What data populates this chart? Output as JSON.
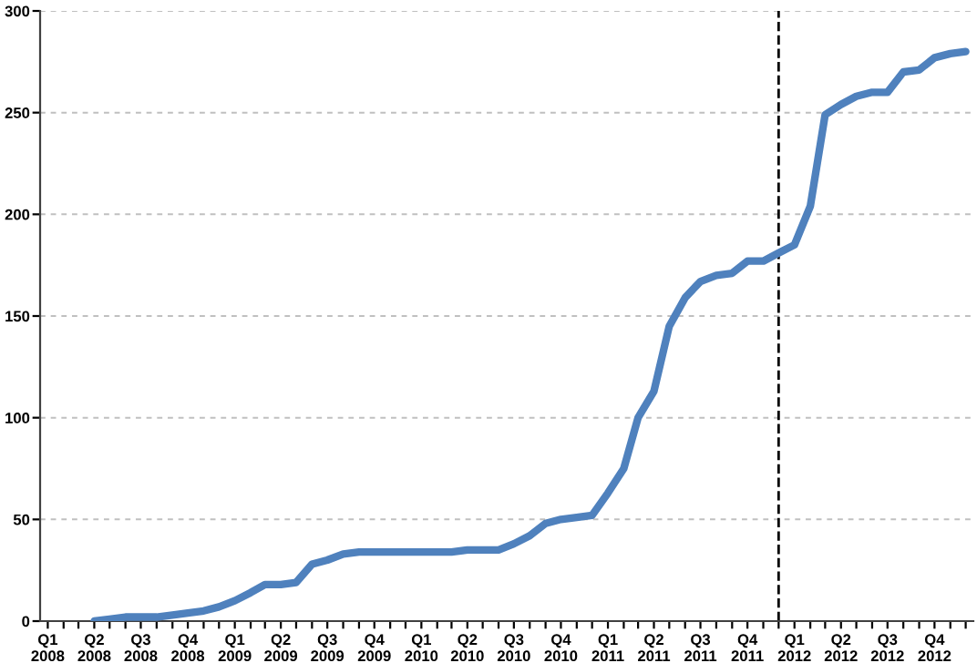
{
  "chart_data": {
    "type": "line",
    "x": [
      "2008-04",
      "2008-05",
      "2008-06",
      "2008-07",
      "2008-08",
      "2008-09",
      "2008-10",
      "2008-11",
      "2008-12",
      "2009-01",
      "2009-02",
      "2009-03",
      "2009-04",
      "2009-05",
      "2009-06",
      "2009-07",
      "2009-08",
      "2009-09",
      "2009-10",
      "2009-11",
      "2009-12",
      "2010-01",
      "2010-02",
      "2010-03",
      "2010-04",
      "2010-05",
      "2010-06",
      "2010-07",
      "2010-08",
      "2010-09",
      "2010-10",
      "2010-11",
      "2010-12",
      "2011-01",
      "2011-02",
      "2011-03",
      "2011-04",
      "2011-05",
      "2011-06",
      "2011-07",
      "2011-08",
      "2011-09",
      "2011-10",
      "2011-11",
      "2011-12",
      "2012-01",
      "2012-02",
      "2012-03",
      "2012-04",
      "2012-05",
      "2012-06",
      "2012-07",
      "2012-08",
      "2012-09",
      "2012-10",
      "2012-11",
      "2012-12"
    ],
    "series": [
      {
        "color": "#4f81bd",
        "values": [
          0,
          1,
          2,
          2,
          2,
          3,
          4,
          5,
          7,
          10,
          14,
          18,
          18,
          19,
          28,
          30,
          33,
          34,
          34,
          34,
          34,
          34,
          34,
          34,
          35,
          35,
          35,
          38,
          42,
          48,
          50,
          51,
          52,
          63,
          75,
          100,
          113,
          145,
          159,
          167,
          170,
          171,
          177,
          177,
          181,
          185,
          204,
          249,
          254,
          258,
          260,
          260,
          270,
          271,
          277,
          279,
          280
        ]
      }
    ],
    "xlim": [
      "2007-12-17",
      "2012-12-16"
    ],
    "xticks": [
      {
        "value": "2008-01",
        "label": "Q1\n2008"
      },
      {
        "value": "2008-02",
        "label": null
      },
      {
        "value": "2008-03",
        "label": null
      },
      {
        "value": "2008-04",
        "label": "Q2\n2008"
      },
      {
        "value": "2008-05",
        "label": null
      },
      {
        "value": "2008-06",
        "label": null
      },
      {
        "value": "2008-07",
        "label": "Q3\n2008"
      },
      {
        "value": "2008-08",
        "label": null
      },
      {
        "value": "2008-09",
        "label": null
      },
      {
        "value": "2008-10",
        "label": "Q4\n2008"
      },
      {
        "value": "2008-11",
        "label": null
      },
      {
        "value": "2008-12",
        "label": null
      },
      {
        "value": "2009-01",
        "label": "Q1\n2009"
      },
      {
        "value": "2009-02",
        "label": null
      },
      {
        "value": "2009-03",
        "label": null
      },
      {
        "value": "2009-04",
        "label": "Q2\n2009"
      },
      {
        "value": "2009-05",
        "label": null
      },
      {
        "value": "2009-06",
        "label": null
      },
      {
        "value": "2009-07",
        "label": "Q3\n2009"
      },
      {
        "value": "2009-08",
        "label": null
      },
      {
        "value": "2009-09",
        "label": null
      },
      {
        "value": "2009-10",
        "label": "Q4\n2009"
      },
      {
        "value": "2009-11",
        "label": null
      },
      {
        "value": "2009-12",
        "label": null
      },
      {
        "value": "2010-01",
        "label": "Q1\n2010"
      },
      {
        "value": "2010-02",
        "label": null
      },
      {
        "value": "2010-03",
        "label": null
      },
      {
        "value": "2010-04",
        "label": "Q2\n2010"
      },
      {
        "value": "2010-05",
        "label": null
      },
      {
        "value": "2010-06",
        "label": null
      },
      {
        "value": "2010-07",
        "label": "Q3\n2010"
      },
      {
        "value": "2010-08",
        "label": null
      },
      {
        "value": "2010-09",
        "label": null
      },
      {
        "value": "2010-10",
        "label": "Q4\n2010"
      },
      {
        "value": "2010-11",
        "label": null
      },
      {
        "value": "2010-12",
        "label": null
      },
      {
        "value": "2011-01",
        "label": "Q1\n2011"
      },
      {
        "value": "2011-02",
        "label": null
      },
      {
        "value": "2011-03",
        "label": null
      },
      {
        "value": "2011-04",
        "label": "Q2\n2011"
      },
      {
        "value": "2011-05",
        "label": null
      },
      {
        "value": "2011-06",
        "label": null
      },
      {
        "value": "2011-07",
        "label": "Q3\n2011"
      },
      {
        "value": "2011-08",
        "label": null
      },
      {
        "value": "2011-09",
        "label": null
      },
      {
        "value": "2011-10",
        "label": "Q4\n2011"
      },
      {
        "value": "2011-11",
        "label": null
      },
      {
        "value": "2011-12",
        "label": null
      },
      {
        "value": "2012-01",
        "label": "Q1\n2012"
      },
      {
        "value": "2012-02",
        "label": null
      },
      {
        "value": "2012-03",
        "label": null
      },
      {
        "value": "2012-04",
        "label": "Q2\n2012"
      },
      {
        "value": "2012-05",
        "label": null
      },
      {
        "value": "2012-06",
        "label": null
      },
      {
        "value": "2012-07",
        "label": "Q3\n2012"
      },
      {
        "value": "2012-08",
        "label": null
      },
      {
        "value": "2012-09",
        "label": null
      },
      {
        "value": "2012-10",
        "label": "Q4\n2012"
      },
      {
        "value": "2012-11",
        "label": null
      },
      {
        "value": "2012-12",
        "label": null
      }
    ],
    "ylim": [
      0,
      300
    ],
    "yticks": [
      0,
      50,
      100,
      150,
      200,
      250,
      300
    ],
    "grid": "y",
    "marker": "none",
    "line_style": "solid",
    "ref_lines": [
      {
        "axis": "x",
        "value": "2011-12",
        "color": "#000000",
        "line_style": "dashed"
      }
    ]
  }
}
